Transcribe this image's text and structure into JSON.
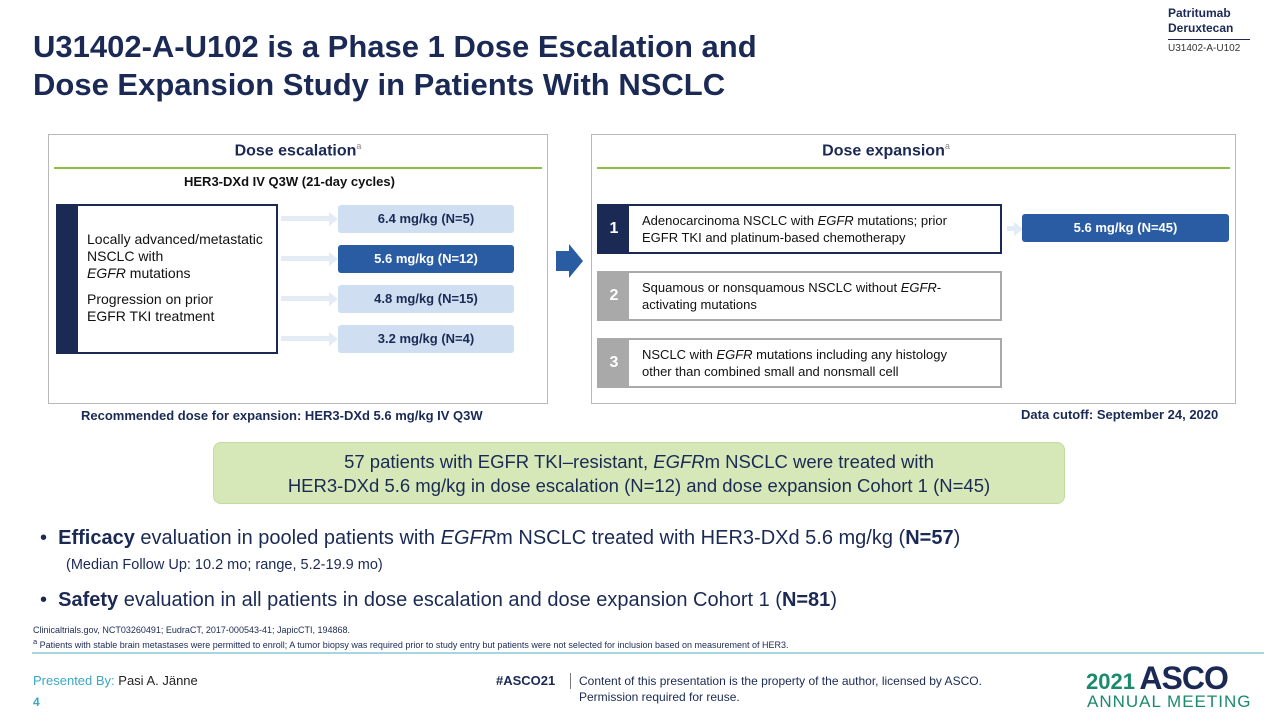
{
  "title": {
    "line1": "U31402-A-U102 is a Phase 1 Dose Escalation and",
    "line2": "Dose Expansion Study in Patients With NSCLC"
  },
  "drug_label": {
    "name1": "Patritumab",
    "name2": "Deruxtecan",
    "code": "U31402-A-U102"
  },
  "escalation": {
    "title": "Dose escalation",
    "superscript": "a",
    "regimen": "HER3-DXd IV Q3W (21-day cycles)",
    "population": {
      "line1": "Locally advanced/metastatic",
      "line2": "NSCLC with",
      "line3_italic": "EGFR",
      "line3_rest": " mutations",
      "line4": "Progression on prior",
      "line5": "EGFR TKI treatment"
    },
    "doses": [
      {
        "label": "6.4 mg/kg (N=5)",
        "highlighted": false
      },
      {
        "label": "5.6 mg/kg (N=12)",
        "highlighted": true
      },
      {
        "label": "4.8 mg/kg (N=15)",
        "highlighted": false
      },
      {
        "label": "3.2 mg/kg (N=4)",
        "highlighted": false
      }
    ],
    "recommended": "Recommended dose for expansion: HER3-DXd 5.6 mg/kg IV Q3W"
  },
  "expansion": {
    "title": "Dose expansion",
    "superscript": "a",
    "cohorts": [
      {
        "number": "1",
        "a": "Adenocarcinoma NSCLC with ",
        "i": "EGFR",
        "b": " mutations; prior",
        "line2": "EGFR TKI and platinum-based chemotherapy"
      },
      {
        "number": "2",
        "a": "Squamous or nonsquamous NSCLC without ",
        "i": "EGFR",
        "b": "-",
        "line2": "activating mutations"
      },
      {
        "number": "3",
        "a": "NSCLC with ",
        "i": "EGFR",
        "b": " mutations including any histology",
        "line2": "other than combined small and nonsmall cell"
      }
    ],
    "cohort1_dose": "5.6 mg/kg (N=45)",
    "data_cutoff": "Data cutoff: September 24, 2020"
  },
  "callout": {
    "l1a": "57 patients with EGFR TKI–resistant, ",
    "l1i": "EGFR",
    "l1b": "m NSCLC were treated with",
    "line2": "HER3-DXd 5.6 mg/kg in dose escalation (N=12) and dose expansion Cohort 1 (N=45)"
  },
  "bullets": {
    "b1_bold": "Efficacy",
    "b1_text": " evaluation in pooled patients with ",
    "b1_italic": "EGFR",
    "b1_text2": "m NSCLC treated with HER3-DXd 5.6 mg/kg (",
    "b1_n": "N=57",
    "b1_close": ")",
    "b1_sub": "(Median Follow Up: 10.2 mo; range, 5.2-19.9 mo)",
    "b2_bold": "Safety",
    "b2_text": " evaluation in all patients in dose escalation and dose expansion Cohort 1 (",
    "b2_n": "N=81",
    "b2_close": ")"
  },
  "references": {
    "line1": "Clinicaltrials.gov,  NCT03260491; EudraCT, 2017-000543-41; JapicCTI, 194868.",
    "footnote_mark": "a",
    "line2": " Patients with stable brain metastases were permitted to enroll; A tumor biopsy was required prior to study entry but patients were not selected for inclusion based on measurement  of HER3."
  },
  "footer": {
    "presented_by": "Presented By:",
    "presenter": " Pasi A. Jänne",
    "page": "4",
    "hashtag": "#ASCO21",
    "rights_line1": "Content of this presentation is the property of the author, licensed by ASCO.",
    "rights_line2": "Permission required for reuse.",
    "logo_year": "2021",
    "logo_name": "ASCO",
    "logo_sub": "ANNUAL MEETING"
  },
  "colors": {
    "navy": "#1b2a55",
    "blue": "#2a5ca4",
    "light_blue": "#cfdff1",
    "green_accent": "#8cbf3f",
    "callout_bg": "#d6e8b8",
    "grey": "#a9a9a9",
    "teal": "#3aa7c4"
  }
}
